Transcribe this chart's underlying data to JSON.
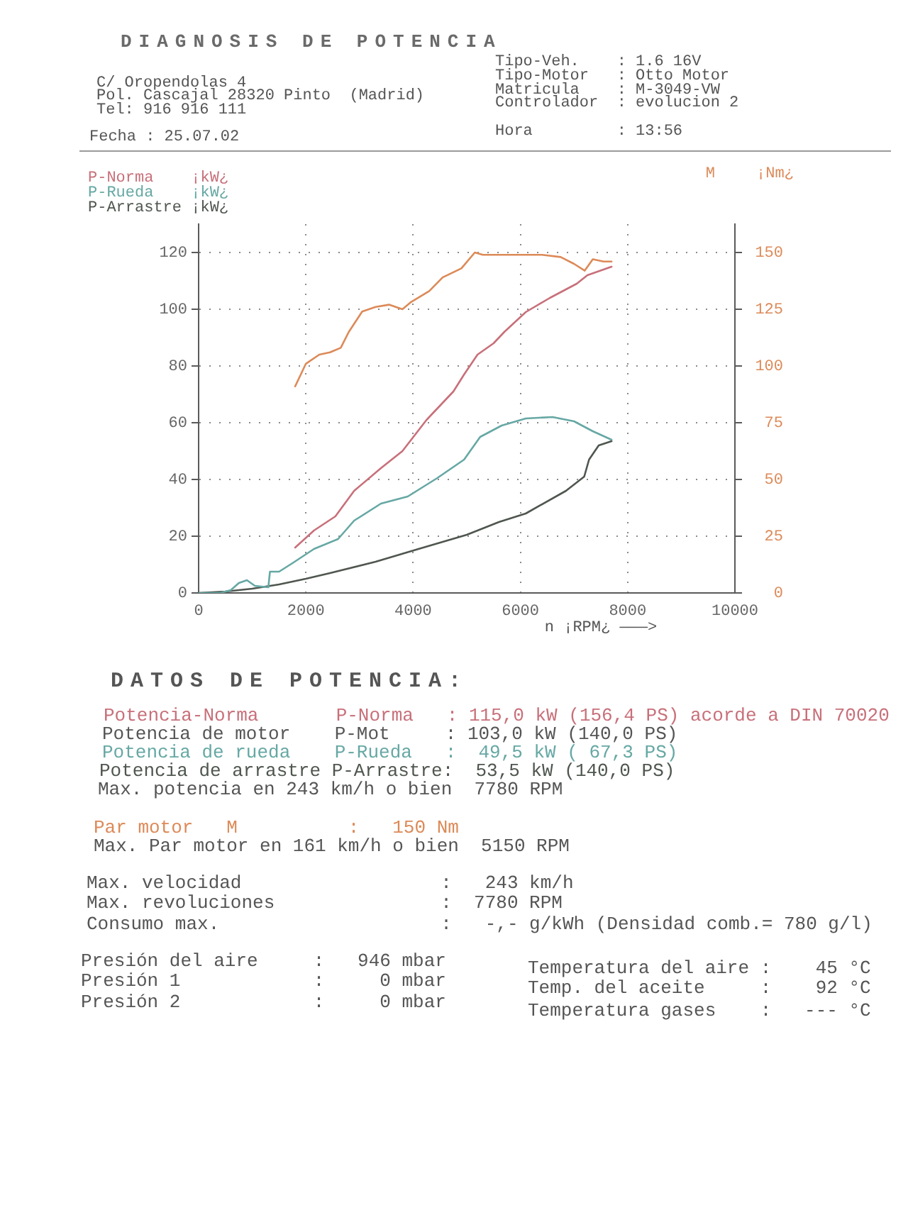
{
  "chart_data": {
    "type": "line",
    "title": "DIAGNOSIS DE POTENCIA",
    "xlabel": "n ¡RPM¿ ———>",
    "y2label": "¡Nm¿",
    "xlim": [
      0,
      10000
    ],
    "xticks": [
      0,
      2000,
      4000,
      6000,
      8000,
      10000
    ],
    "ylim": [
      0,
      130
    ],
    "yticks": [
      0,
      20,
      40,
      60,
      80,
      100,
      120
    ],
    "y2lim": [
      0,
      162.5
    ],
    "y2ticks": [
      0,
      25,
      50,
      75,
      100,
      125,
      150
    ],
    "grid": true,
    "legend": "top left",
    "marker": "none",
    "line_style": "solid",
    "series": [
      {
        "name": "P-Norma    ¡kW¿",
        "color": "#c8707a",
        "x": [
          1800,
          2150,
          2550,
          2900,
          3400,
          3800,
          4250,
          4750,
          4950,
          5200,
          5500,
          5700,
          6100,
          6550,
          7050,
          7250,
          7400,
          7550,
          7700
        ],
        "values": [
          16,
          22,
          27,
          36,
          44,
          50,
          61,
          71,
          77,
          84,
          88,
          92,
          99,
          104,
          109,
          112,
          113,
          114,
          115
        ]
      },
      {
        "name": "P-Rueda    ¡kW¿",
        "color": "#66a8a4",
        "x": [
          0,
          400,
          600,
          750,
          900,
          1050,
          1300,
          1330,
          1500,
          1750,
          2150,
          2600,
          2900,
          3400,
          3900,
          4450,
          4950,
          5250,
          5650,
          6100,
          6600,
          7000,
          7350,
          7700
        ],
        "values": [
          0,
          0,
          1,
          3.5,
          4.5,
          2.5,
          2,
          7.5,
          7.5,
          10.5,
          15.5,
          19,
          25.5,
          31.5,
          34,
          40.5,
          47,
          55,
          59,
          61.5,
          62,
          60.5,
          57,
          54
        ]
      },
      {
        "name": "P-Arrastre ¡kW¿",
        "color": "#4f564f",
        "x": [
          0,
          500,
          1000,
          1500,
          2000,
          2450,
          3300,
          4100,
          5000,
          5600,
          6100,
          6850,
          7190,
          7280,
          7460,
          7700
        ],
        "values": [
          0,
          0.5,
          1.5,
          3,
          5,
          7,
          11,
          15.5,
          20.5,
          25,
          28,
          36,
          41,
          47,
          52,
          53.5
        ]
      },
      {
        "name": "M",
        "color": "#dc8a58",
        "axis": "y2",
        "x": [
          1800,
          2000,
          2250,
          2450,
          2650,
          2800,
          3050,
          3300,
          3550,
          3800,
          3950,
          4300,
          4550,
          4900,
          5150,
          5300,
          5700,
          6100,
          6400,
          6750,
          7000,
          7200,
          7350,
          7550,
          7700
        ],
        "values": [
          91,
          101,
          105,
          106,
          108,
          115,
          124,
          126,
          127,
          125,
          128,
          133,
          139,
          143,
          150,
          149,
          149,
          149,
          149,
          148,
          145,
          142,
          147,
          146,
          146
        ]
      }
    ],
    "annotations": [
      "C/ Oropendolas 4",
      "Pol. Cascajal 28320 Pinto  (Madrid)",
      "Tel: 916 916 111",
      "Fecha : 25.07.02",
      "Tipo-Veh.    : 1.6 16V",
      "Tipo-Motor   : Otto Motor",
      "Matricula    : M-3049-VW",
      "Controlador  : evolucion 2",
      "Hora         : 13:56",
      "DATOS DE POTENCIA:",
      "Potencia-Norma       P-Norma   : 115,0 kW (156,4 PS) acorde a DIN 70020",
      "Potencia de motor    P-Mot     : 103,0 kW (140,0 PS)",
      "Potencia de rueda    P-Rueda   :  49,5 kW ( 67,3 PS)",
      "Potencia de arrastre P-Arrastre:  53,5 kW (140,0 PS)",
      "Max. potencia en 243 km/h o bien  7780 RPM",
      "Par motor   M          :   150 Nm",
      "Max. Par motor en 161 km/h o bien  5150 RPM",
      "Max. velocidad                  :   243 km/h",
      "Max. revoluciones               :  7780 RPM",
      "Consumo max.                    :   -,- g/kWh (Densidad comb.= 780 g/l)",
      "Presión del aire     :   946 mbar",
      "Presión 1            :     0 mbar",
      "Presión 2            :     0 mbar",
      "Temperatura del aire :    45 °C",
      "Temp. del aceite     :    92 °C",
      "Temperatura gases    :   --- °C"
    ]
  }
}
